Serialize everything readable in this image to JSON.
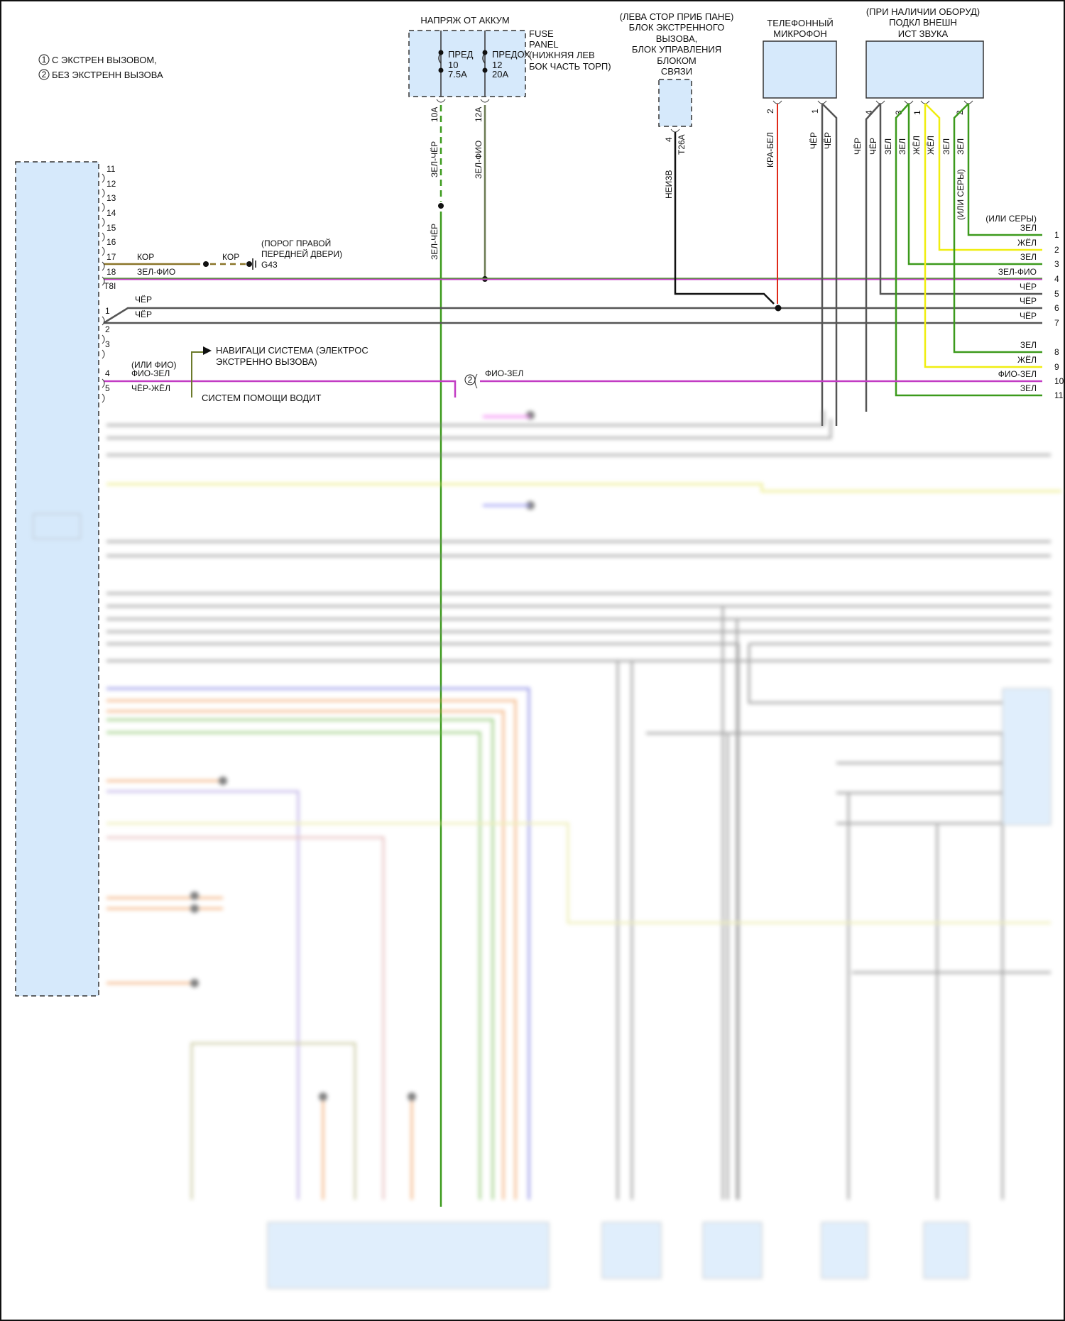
{
  "legend": {
    "items": [
      {
        "marker": "1",
        "label": "С ЭКСТРЕН ВЫЗОВОМ,"
      },
      {
        "marker": "2",
        "label": "БЕЗ ЭКСТРЕНН ВЫЗОВА"
      }
    ]
  },
  "fuse_panel": {
    "supply_label": "НАПРЯЖ ОТ АККУМ",
    "name_lines": [
      "FUSE",
      "PANEL",
      "(НИЖНЯЯ ЛЕВ",
      "БОК ЧАСТЬ ТОРП)"
    ],
    "fuses": [
      {
        "name": "ПРЕД",
        "number": "10",
        "rating": "7.5A",
        "pin": "10A",
        "wire": "ЗЕЛ-ЧЁР"
      },
      {
        "name": "ПРЕДОХ",
        "number": "12",
        "rating": "20A",
        "pin": "12A",
        "wire": "ЗЕЛ-ФИО"
      }
    ]
  },
  "emergency_block": {
    "title_lines": [
      "(ЛЕВА СТОР ПРИБ ПАНЕ)",
      "БЛОК ЭКСТРЕННОГО",
      "ВЫЗОВА,",
      "БЛОК УПРАВЛЕНИЯ",
      "БЛОКОМ",
      "СВЯЗИ"
    ],
    "pin": "4",
    "connector": "T26A",
    "wire": "НЕИЗВ"
  },
  "microphone": {
    "title_lines": [
      "ТЕЛЕФОННЫЙ",
      "МИКРОФОН"
    ],
    "pins": [
      {
        "pin": "2",
        "wire": "КРА-БЕЛ"
      },
      {
        "pin": "1",
        "wires": [
          "ЧЁР",
          "ЧЁР"
        ]
      }
    ]
  },
  "aux_audio": {
    "title_lines": [
      "(ПРИ НАЛИЧИИ ОБОРУД)",
      "ПОДКЛ ВНЕШН",
      "ИСТ ЗВУКА"
    ],
    "pins": [
      "4",
      "3",
      "1",
      "2"
    ],
    "wire_labels": [
      "ЧЁР",
      "ЧЁР",
      "ЗЕЛ",
      "ЗЕЛ",
      "ЖЁЛ",
      "ЖЁЛ",
      "ЗЕЛ",
      "ЗЕЛ"
    ],
    "alt_note": "(ИЛИ СЕРЫ)"
  },
  "left_module": {
    "pins_upper": [
      "11",
      "12",
      "13",
      "14",
      "15",
      "16",
      "17",
      "18"
    ],
    "connector": "T8I",
    "pins_lower": [
      "1",
      "2",
      "3",
      "4",
      "5"
    ],
    "wires": {
      "w17": "КОР",
      "w18": "ЗЕЛ-ФИО",
      "w1a": "ЧЁР",
      "w1b": "ЧЁР",
      "w4_alt": "(ИЛИ ФИО)",
      "w4": "ФИО-ЗЕЛ",
      "w5": "ЧЁР-ЖЁЛ"
    }
  },
  "ground": {
    "wire": "КОР",
    "location_lines": [
      "(ПОРОГ ПРАВОЙ",
      "ПЕРЕДНЕЙ ДВЕРИ)"
    ],
    "id": "G43"
  },
  "navigation_ref": {
    "lines": [
      "НАВИГАЦИ СИСТЕМА (ЭЛЕКТРОС",
      "ЭКСТРЕННО ВЫЗОВА)"
    ]
  },
  "driver_assist_ref": "СИСТЕМ ПОМОЩИ ВОДИТ",
  "variant2_branch": {
    "marker": "2",
    "wire": "ФИО-ЗЕЛ"
  },
  "right_edge": {
    "alt_note": "(ИЛИ СЕРЫ)",
    "rows": [
      {
        "n": "1",
        "label": "ЗЕЛ"
      },
      {
        "n": "2",
        "label": "ЖЁЛ"
      },
      {
        "n": "3",
        "label": "ЗЕЛ"
      },
      {
        "n": "4",
        "label": "ЗЕЛ-ФИО"
      },
      {
        "n": "5",
        "label": "ЧЁР"
      },
      {
        "n": "6",
        "label": "ЧЁР"
      },
      {
        "n": "7",
        "label": "ЧЁР"
      },
      {
        "n": "8",
        "label": "ЗЕЛ"
      },
      {
        "n": "9",
        "label": "ЖЁЛ"
      },
      {
        "n": "10",
        "label": "ФИО-ЗЕЛ"
      },
      {
        "n": "11",
        "label": "ЗЕЛ"
      }
    ]
  },
  "colors": {
    "green": "#3c9a1c",
    "yellow": "#f0ee10",
    "magenta": "#c23cc4",
    "gray": "#555555",
    "black": "#111111",
    "red": "#e02a1a",
    "brown": "#8a7428",
    "block_fill": "#d6e9fb"
  }
}
